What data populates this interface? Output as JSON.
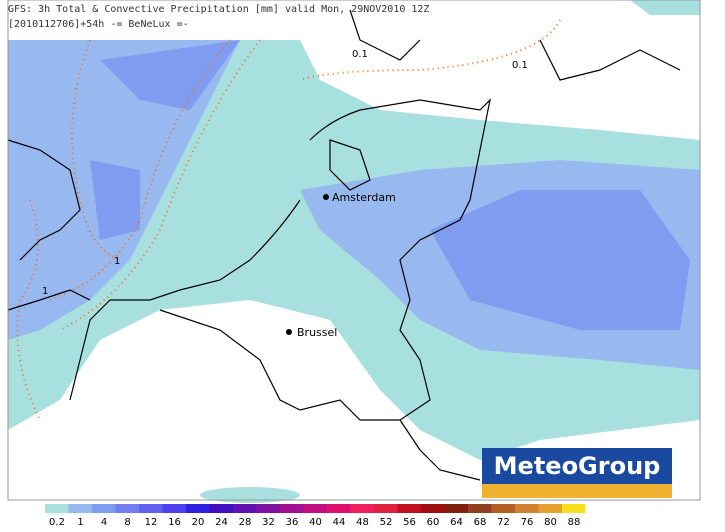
{
  "header": {
    "line1": "GFS: 3h Total & Convective Precipitation [mm] valid Mon, 29NOV2010 12Z",
    "line2": "[2010112706]+54h -= BeNeLux =-"
  },
  "cities": [
    {
      "label": "Amsterdam"
    },
    {
      "label": "Brussel"
    }
  ],
  "contour_labels": [
    "0.1",
    "0.1",
    "1",
    "1"
  ],
  "logo": "MeteoGroup",
  "colorbar": {
    "ticks": [
      0.2,
      1,
      4,
      8,
      12,
      16,
      20,
      24,
      28,
      32,
      36,
      40,
      44,
      48,
      52,
      56,
      60,
      64,
      68,
      72,
      76,
      80,
      88
    ],
    "colors": [
      "#a8e0e0",
      "#98b8f0",
      "#7f9cf0",
      "#6f7ff0",
      "#5f60f0",
      "#4f40f0",
      "#3020e0",
      "#4010c0",
      "#6010b0",
      "#8010a0",
      "#a01090",
      "#c01080",
      "#e01070",
      "#f02060",
      "#e02040",
      "#c01020",
      "#a01010",
      "#802010",
      "#904020",
      "#b06020",
      "#d08030",
      "#e8a030",
      "#f8e020"
    ]
  }
}
